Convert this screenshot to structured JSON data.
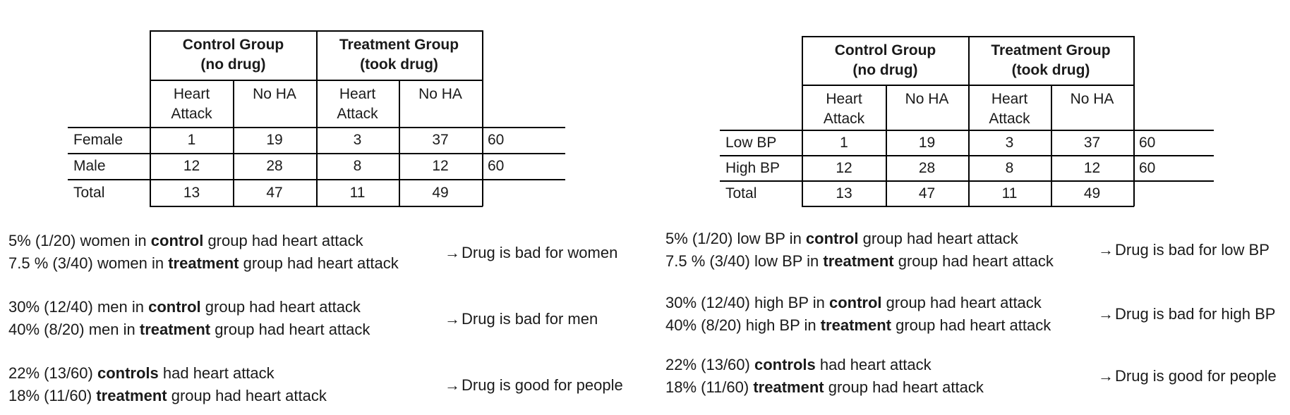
{
  "left": {
    "groups": [
      {
        "title": "Control Group",
        "sub": "(no drug)"
      },
      {
        "title": "Treatment Group",
        "sub": "(took drug)"
      }
    ],
    "col_headers": [
      {
        "l1": "Heart",
        "l2": "Attack"
      },
      {
        "l1": "No HA",
        "l2": ""
      },
      {
        "l1": "Heart",
        "l2": "Attack"
      },
      {
        "l1": "No HA",
        "l2": ""
      }
    ],
    "rows": [
      {
        "label": "Female",
        "values": [
          "1",
          "19",
          "3",
          "37"
        ],
        "total": "60"
      },
      {
        "label": "Male",
        "values": [
          "12",
          "28",
          "8",
          "12"
        ],
        "total": "60"
      },
      {
        "label": "Total",
        "values": [
          "13",
          "47",
          "11",
          "49"
        ],
        "total": ""
      }
    ],
    "statements": [
      {
        "lines": [
          {
            "pre": "5% (1/20) women in ",
            "bold": "control",
            "post": " group had heart attack"
          },
          {
            "pre": "7.5 % (3/40) women in ",
            "bold": "treatment",
            "post": " group had heart attack"
          }
        ],
        "arrow": "→",
        "conclusion": "Drug is bad for women"
      },
      {
        "lines": [
          {
            "pre": "30% (12/40) men in ",
            "bold": "control",
            "post": " group had heart attack"
          },
          {
            "pre": "40% (8/20) men in ",
            "bold": "treatment",
            "post": " group had heart attack"
          }
        ],
        "arrow": "→",
        "conclusion": "Drug is bad for men"
      },
      {
        "lines": [
          {
            "pre": "22% (13/60) ",
            "bold": "controls",
            "post": " had heart attack"
          },
          {
            "pre": "18% (11/60) ",
            "bold": "treatment",
            "post": " group had heart attack"
          }
        ],
        "arrow": "→",
        "conclusion": "Drug is good for people"
      }
    ]
  },
  "right": {
    "groups": [
      {
        "title": "Control Group",
        "sub": "(no drug)"
      },
      {
        "title": "Treatment Group",
        "sub": "(took drug)"
      }
    ],
    "col_headers": [
      {
        "l1": "Heart",
        "l2": "Attack"
      },
      {
        "l1": "No HA",
        "l2": ""
      },
      {
        "l1": "Heart",
        "l2": "Attack"
      },
      {
        "l1": "No HA",
        "l2": ""
      }
    ],
    "rows": [
      {
        "label": "Low BP",
        "values": [
          "1",
          "19",
          "3",
          "37"
        ],
        "total": "60"
      },
      {
        "label": "High BP",
        "values": [
          "12",
          "28",
          "8",
          "12"
        ],
        "total": "60"
      },
      {
        "label": "Total",
        "values": [
          "13",
          "47",
          "11",
          "49"
        ],
        "total": ""
      }
    ],
    "statements": [
      {
        "lines": [
          {
            "pre": "5% (1/20) low BP in ",
            "bold": "control",
            "post": " group had heart attack"
          },
          {
            "pre": "7.5 % (3/40) low BP in ",
            "bold": "treatment",
            "post": " group had heart attack"
          }
        ],
        "arrow": "→",
        "conclusion": "Drug is bad for low BP"
      },
      {
        "lines": [
          {
            "pre": "30% (12/40) high BP in ",
            "bold": "control",
            "post": " group had heart attack"
          },
          {
            "pre": "40% (8/20) high BP in ",
            "bold": "treatment",
            "post": " group had heart attack"
          }
        ],
        "arrow": "→",
        "conclusion": "Drug is bad for high BP"
      },
      {
        "lines": [
          {
            "pre": "22% (13/60) ",
            "bold": "controls",
            "post": " had heart attack"
          },
          {
            "pre": "18% (11/60) ",
            "bold": "treatment",
            "post": " group had heart attack"
          }
        ],
        "arrow": "→",
        "conclusion": "Drug is good for people"
      }
    ]
  }
}
